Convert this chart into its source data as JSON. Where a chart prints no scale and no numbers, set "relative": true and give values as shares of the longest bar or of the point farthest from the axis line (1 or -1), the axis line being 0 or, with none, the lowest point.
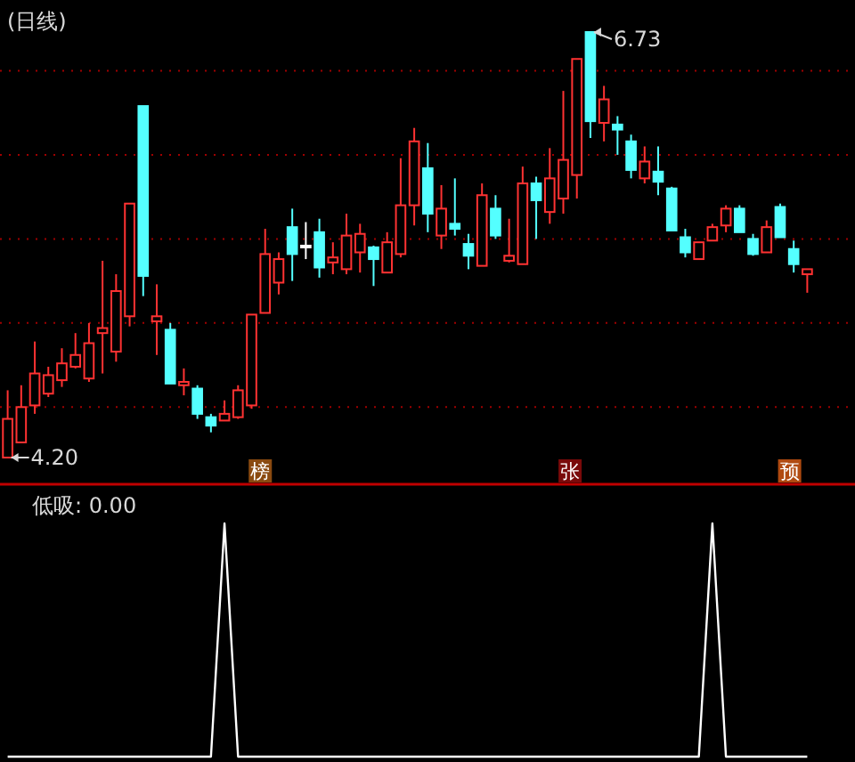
{
  "chart_data": [
    {
      "type": "candlestick",
      "title": "(日线)",
      "categories": [
        null,
        null,
        null,
        null,
        null,
        null,
        null,
        null,
        null,
        null,
        null,
        null,
        null,
        null,
        null,
        null,
        null,
        null,
        null,
        null,
        null,
        null,
        null,
        null,
        null,
        null,
        null,
        null,
        null,
        null,
        null,
        null,
        null,
        null,
        null,
        null,
        null,
        null,
        null,
        null,
        null,
        null,
        null,
        null,
        null,
        null,
        null,
        null,
        null,
        null,
        null,
        null,
        null,
        null,
        null,
        null,
        null,
        null,
        null,
        null
      ],
      "ohlc": [
        [
          4.2,
          4.6,
          4.2,
          4.43
        ],
        [
          4.29,
          4.63,
          4.29,
          4.5
        ],
        [
          4.51,
          4.89,
          4.46,
          4.7
        ],
        [
          4.58,
          4.74,
          4.56,
          4.69
        ],
        [
          4.66,
          4.85,
          4.62,
          4.76
        ],
        [
          4.74,
          4.94,
          4.73,
          4.81
        ],
        [
          4.67,
          5.0,
          4.65,
          4.88
        ],
        [
          4.94,
          5.37,
          4.7,
          4.97
        ],
        [
          4.83,
          5.29,
          4.77,
          5.19
        ],
        [
          5.04,
          5.71,
          4.98,
          5.71
        ],
        [
          6.29,
          6.29,
          5.16,
          5.28
        ],
        [
          5.01,
          5.23,
          4.81,
          5.04
        ],
        [
          4.96,
          5.0,
          4.64,
          4.64
        ],
        [
          4.63,
          4.73,
          4.57,
          4.65
        ],
        [
          4.61,
          4.63,
          4.43,
          4.46
        ],
        [
          4.44,
          4.46,
          4.35,
          4.39
        ],
        [
          4.42,
          4.54,
          4.42,
          4.46
        ],
        [
          4.44,
          4.63,
          4.43,
          4.6
        ],
        [
          4.51,
          5.05,
          4.49,
          5.05
        ],
        [
          5.06,
          5.56,
          5.06,
          5.41
        ],
        [
          5.24,
          5.42,
          5.17,
          5.38
        ],
        [
          5.57,
          5.68,
          5.25,
          5.41
        ],
        [
          5.46,
          5.6,
          5.38,
          5.46
        ],
        [
          5.54,
          5.62,
          5.27,
          5.33
        ],
        [
          5.36,
          5.48,
          5.29,
          5.39
        ],
        [
          5.32,
          5.65,
          5.29,
          5.52
        ],
        [
          5.42,
          5.59,
          5.3,
          5.53
        ],
        [
          5.45,
          5.46,
          5.22,
          5.38
        ],
        [
          5.3,
          5.54,
          5.3,
          5.48
        ],
        [
          5.41,
          5.98,
          5.39,
          5.7
        ],
        [
          5.7,
          6.16,
          5.58,
          6.08
        ],
        [
          5.92,
          6.07,
          5.54,
          5.65
        ],
        [
          5.52,
          5.82,
          5.44,
          5.68
        ],
        [
          5.59,
          5.86,
          5.52,
          5.56
        ],
        [
          5.47,
          5.53,
          5.32,
          5.4
        ],
        [
          5.34,
          5.83,
          5.34,
          5.76
        ],
        [
          5.68,
          5.76,
          5.5,
          5.52
        ],
        [
          5.37,
          5.62,
          5.36,
          5.4
        ],
        [
          5.35,
          5.93,
          5.35,
          5.83
        ],
        [
          5.83,
          5.87,
          5.5,
          5.73
        ],
        [
          5.66,
          6.04,
          5.59,
          5.86
        ],
        [
          5.74,
          6.38,
          5.65,
          5.97
        ],
        [
          5.88,
          6.57,
          5.74,
          6.57
        ],
        [
          6.73,
          6.73,
          6.1,
          6.2
        ],
        [
          6.19,
          6.41,
          6.08,
          6.33
        ],
        [
          6.18,
          6.23,
          6.0,
          6.15
        ],
        [
          6.08,
          6.12,
          5.86,
          5.91
        ],
        [
          5.86,
          6.05,
          5.83,
          5.96
        ],
        [
          5.9,
          6.05,
          5.76,
          5.84
        ],
        [
          5.8,
          5.81,
          5.55,
          5.55
        ],
        [
          5.51,
          5.56,
          5.39,
          5.42
        ],
        [
          5.38,
          5.48,
          5.38,
          5.48
        ],
        [
          5.49,
          5.59,
          5.49,
          5.57
        ],
        [
          5.58,
          5.7,
          5.54,
          5.68
        ],
        [
          5.68,
          5.7,
          5.54,
          5.54
        ],
        [
          5.5,
          5.53,
          5.4,
          5.41
        ],
        [
          5.42,
          5.61,
          5.42,
          5.57
        ],
        [
          5.69,
          5.71,
          5.51,
          5.51
        ],
        [
          5.44,
          5.49,
          5.3,
          5.35
        ],
        [
          5.29,
          5.32,
          5.18,
          5.32
        ]
      ],
      "colors": [
        "#ff3232",
        "#ff3232",
        "#ff3232",
        "#ff3232",
        "#ff3232",
        "#ff3232",
        "#ff3232",
        "#ff3232",
        "#ff3232",
        "#ff3232",
        "#54ffff",
        "#ff3232",
        "#54ffff",
        "#ff3232",
        "#54ffff",
        "#54ffff",
        "#ff3232",
        "#ff3232",
        "#ff3232",
        "#ff3232",
        "#ff3232",
        "#54ffff",
        "#ffffff",
        "#54ffff",
        "#ff3232",
        "#ff3232",
        "#ff3232",
        "#54ffff",
        "#ff3232",
        "#ff3232",
        "#ff3232",
        "#54ffff",
        "#ff3232",
        "#54ffff",
        "#54ffff",
        "#ff3232",
        "#54ffff",
        "#ff3232",
        "#ff3232",
        "#54ffff",
        "#ff3232",
        "#ff3232",
        "#ff3232",
        "#54ffff",
        "#ff3232",
        "#54ffff",
        "#54ffff",
        "#ff3232",
        "#54ffff",
        "#54ffff",
        "#54ffff",
        "#ff3232",
        "#ff3232",
        "#ff3232",
        "#54ffff",
        "#54ffff",
        "#ff3232",
        "#54ffff",
        "#54ffff",
        "#ff3232"
      ],
      "yticks": [
        {
          "value": 4.5,
          "label": null
        },
        {
          "value": 5.0,
          "label": null
        },
        {
          "value": 5.5,
          "label": null
        },
        {
          "value": 6.0,
          "label": null
        },
        {
          "value": 6.5,
          "label": null
        }
      ],
      "grid": true,
      "annotations": [
        "6.73",
        "4.20",
        "榜",
        "张",
        "预"
      ]
    },
    {
      "type": "line",
      "title": "低吸: 0.00",
      "relative": true,
      "categories": [
        null,
        null,
        null,
        null,
        null,
        null,
        null,
        null,
        null,
        null,
        null,
        null,
        null,
        null,
        null,
        null,
        null,
        null,
        null,
        null,
        null,
        null,
        null,
        null,
        null,
        null,
        null,
        null,
        null,
        null,
        null,
        null,
        null,
        null,
        null,
        null,
        null,
        null,
        null,
        null,
        null,
        null,
        null,
        null,
        null,
        null,
        null,
        null,
        null,
        null,
        null,
        null,
        null,
        null,
        null,
        null,
        null,
        null,
        null,
        null
      ],
      "series": [
        {
          "color": "#ffffff",
          "values": [
            0,
            0,
            0,
            0,
            0,
            0,
            0,
            0,
            0,
            0,
            0,
            0,
            0,
            0,
            0,
            0,
            1,
            0,
            0,
            0,
            0,
            0,
            0,
            0,
            0,
            0,
            0,
            0,
            0,
            0,
            0,
            0,
            0,
            0,
            0,
            0,
            0,
            0,
            0,
            0,
            0,
            0,
            0,
            0,
            0,
            0,
            0,
            0,
            0,
            0,
            0,
            0,
            1,
            0,
            0,
            0,
            0,
            0,
            0,
            0
          ]
        }
      ]
    }
  ]
}
